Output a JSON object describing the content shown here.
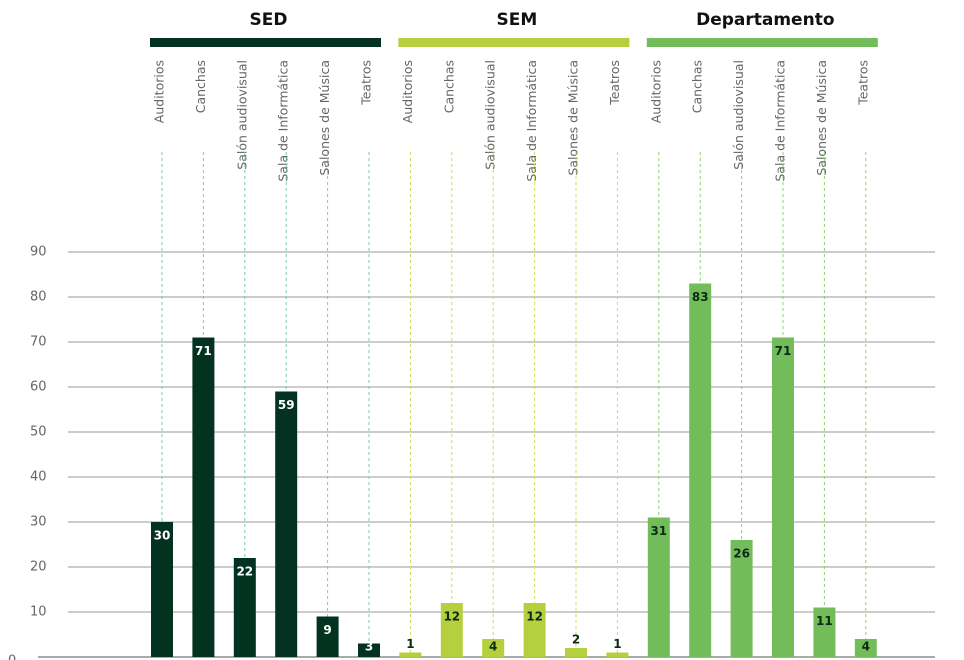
{
  "chart_data": {
    "type": "bar",
    "categories": [
      "Auditorios",
      "Canchas",
      "Salón audiovisual",
      "Sala de Informática",
      "Salones de Música",
      "Teatros"
    ],
    "series": [
      {
        "name": "SED",
        "color": "#033220",
        "values": [
          30,
          71,
          22,
          59,
          9,
          3
        ]
      },
      {
        "name": "SEM",
        "color": "#b5cf3e",
        "values": [
          1,
          12,
          4,
          12,
          2,
          1
        ]
      },
      {
        "name": "Departamento",
        "color": "#72bd5a",
        "values": [
          31,
          83,
          26,
          71,
          11,
          4
        ]
      }
    ],
    "ylim": [
      0,
      90
    ],
    "yticks": [
      0,
      10,
      20,
      30,
      40,
      50,
      60,
      70,
      80,
      90
    ],
    "grid": true
  }
}
